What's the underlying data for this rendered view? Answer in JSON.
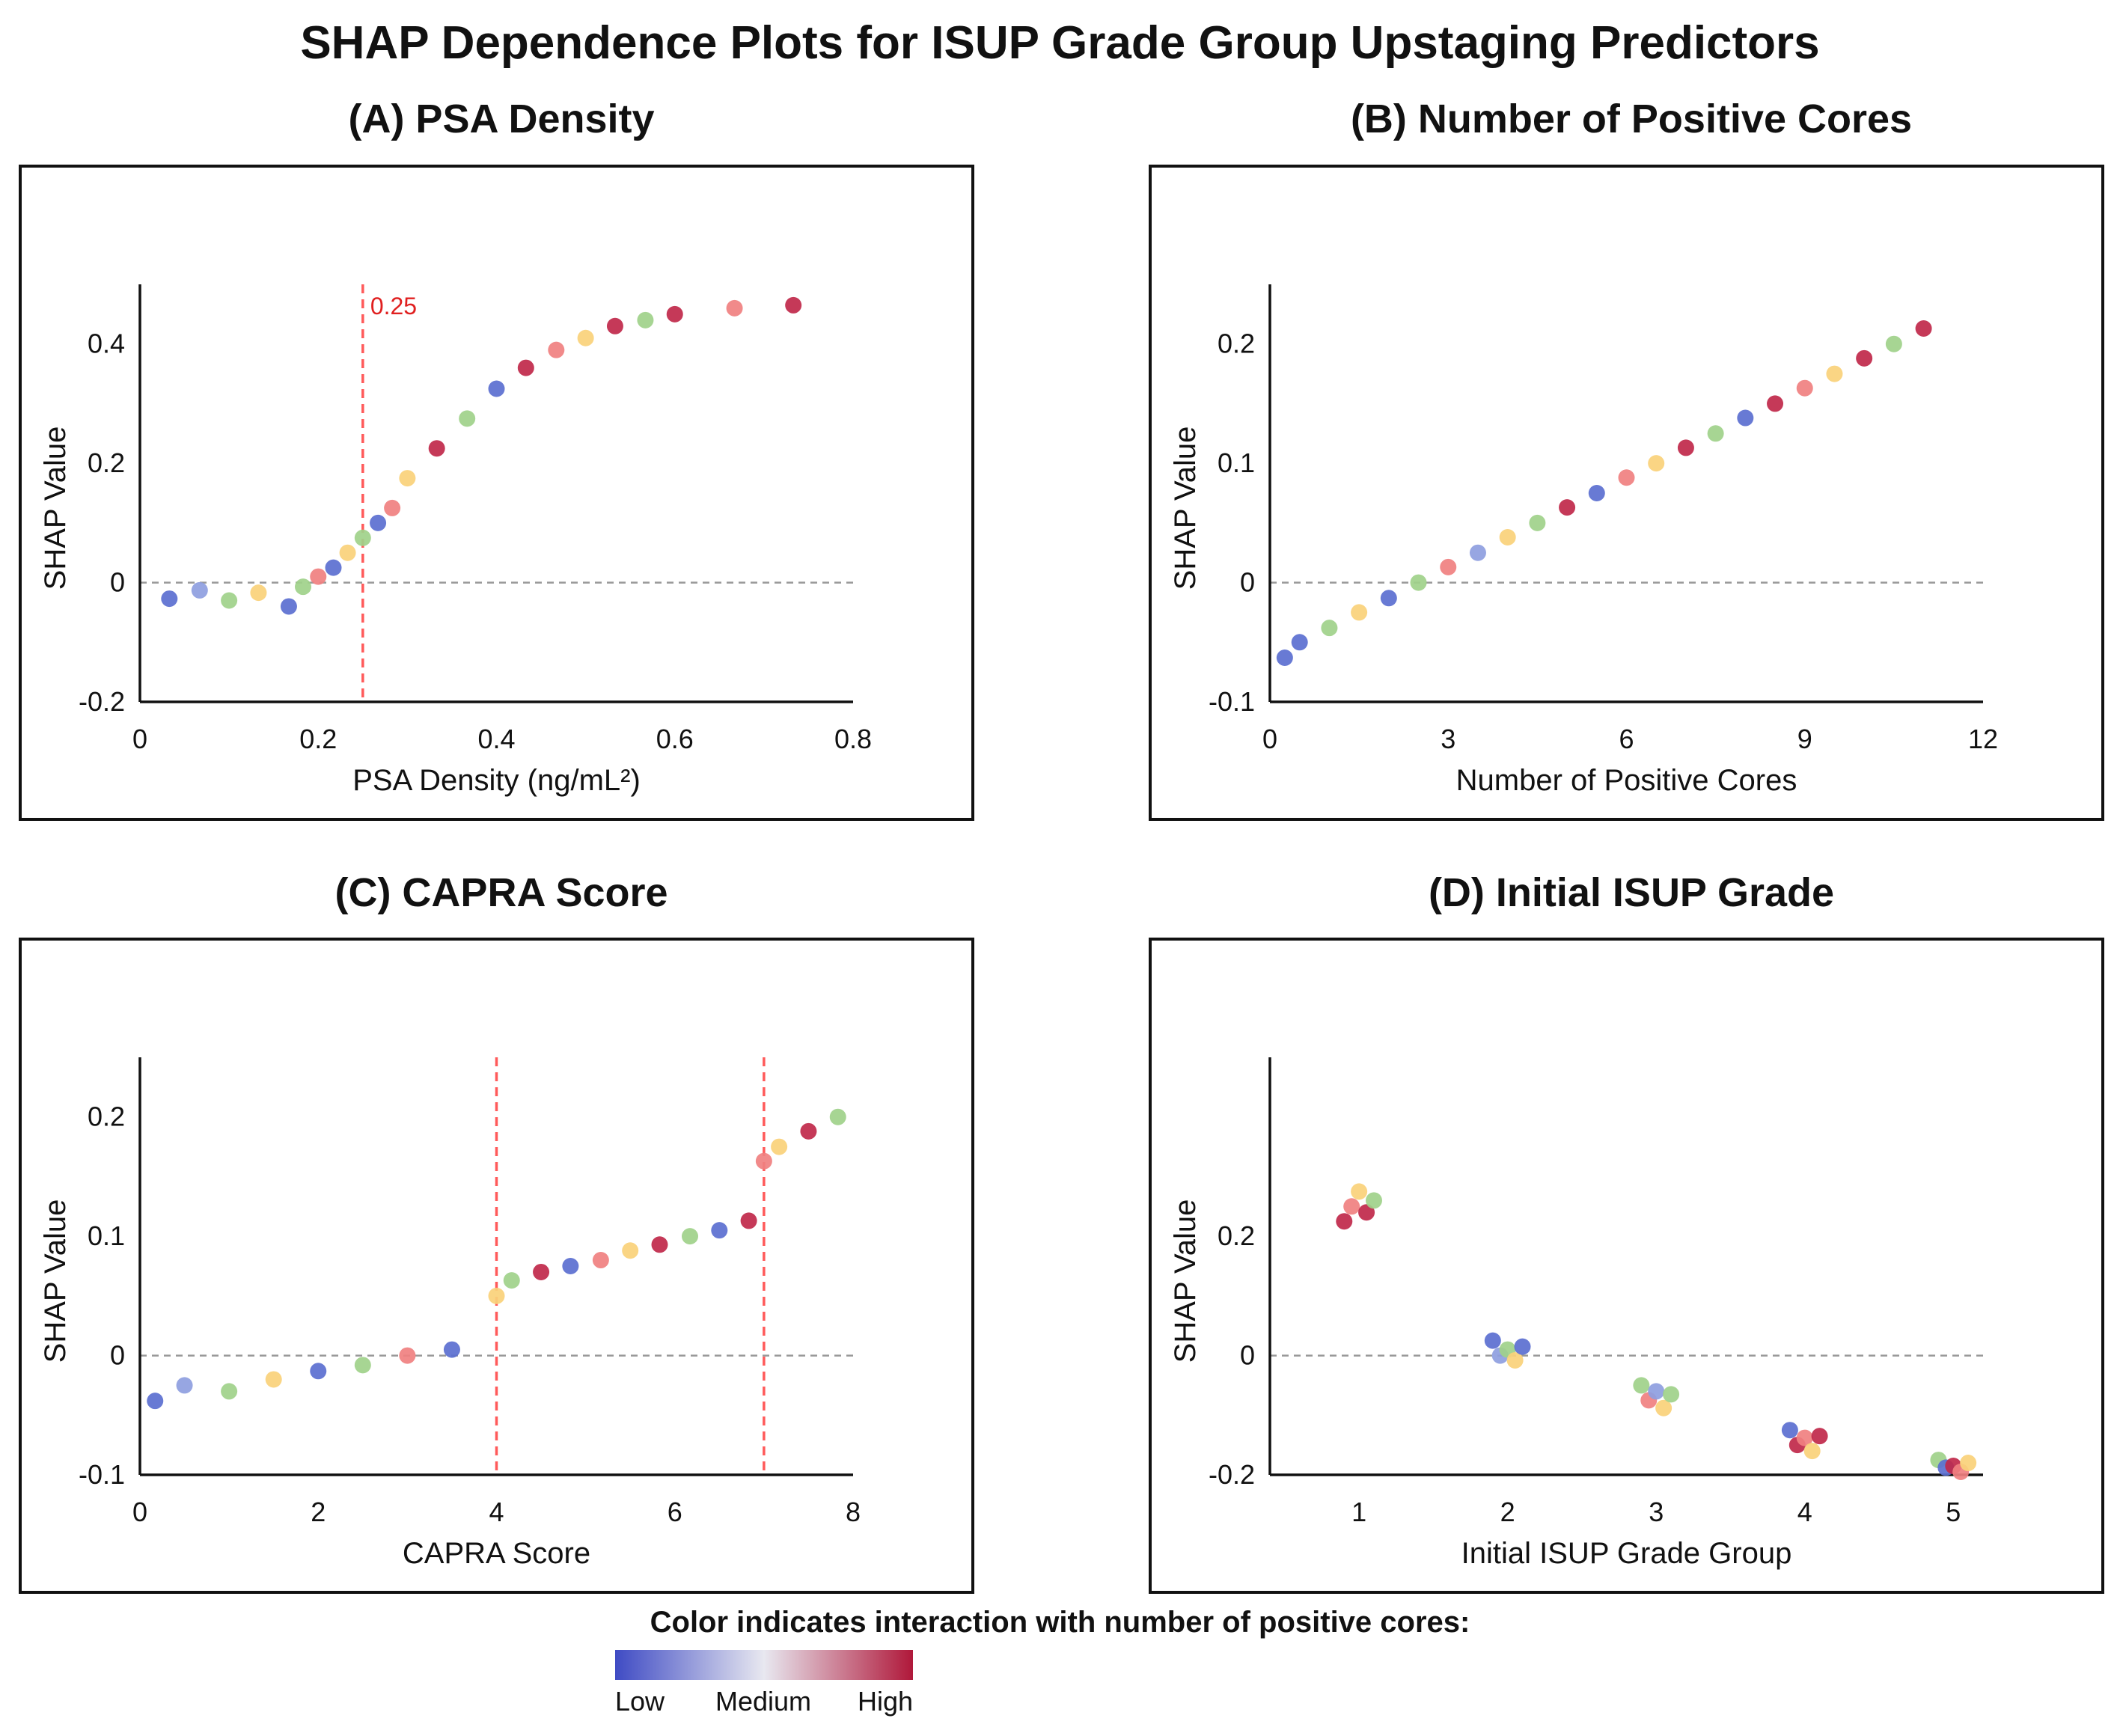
{
  "title": "SHAP Dependence Plots for ISUP Grade Group Upstaging Predictors",
  "colors": {
    "low": "#5b6fd0",
    "mid_low": "#8e9ee0",
    "medium": "#9fd18a",
    "mid_high": "#fad17a",
    "pinkish": "#f08080",
    "high": "#c0284a",
    "threshold": "#ff5a5a",
    "zero_line": "#999999"
  },
  "legend": {
    "title": "Color indicates interaction with number of positive cores:",
    "low": "Low",
    "medium": "Medium",
    "high": "High"
  },
  "chart_data": [
    {
      "type": "scatter",
      "title": "(A) PSA Density",
      "xlabel": "PSA Density (ng/mL²)",
      "ylabel": "SHAP Value",
      "xlim": [
        0,
        0.8
      ],
      "ylim": [
        -0.2,
        0.5
      ],
      "xticks": [
        0,
        0.2,
        0.4,
        0.6,
        0.8
      ],
      "xticklabels": [
        "0",
        "0.2",
        "0.4",
        "0.6",
        "0.8"
      ],
      "yticks": [
        -0.2,
        0,
        0.2,
        0.4
      ],
      "yticklabels": [
        "-0.2",
        "0",
        "0.2",
        "0.4"
      ],
      "thresholds": [
        {
          "x": 0.25,
          "label": "0.25"
        }
      ],
      "points": [
        {
          "x": 0.033,
          "y": -0.027,
          "c": "low"
        },
        {
          "x": 0.067,
          "y": -0.013,
          "c": "mid_low"
        },
        {
          "x": 0.1,
          "y": -0.03,
          "c": "medium"
        },
        {
          "x": 0.133,
          "y": -0.017,
          "c": "mid_high"
        },
        {
          "x": 0.167,
          "y": -0.04,
          "c": "low"
        },
        {
          "x": 0.183,
          "y": -0.007,
          "c": "medium"
        },
        {
          "x": 0.2,
          "y": 0.01,
          "c": "pinkish"
        },
        {
          "x": 0.217,
          "y": 0.025,
          "c": "low"
        },
        {
          "x": 0.233,
          "y": 0.05,
          "c": "mid_high"
        },
        {
          "x": 0.25,
          "y": 0.075,
          "c": "medium"
        },
        {
          "x": 0.267,
          "y": 0.1,
          "c": "low"
        },
        {
          "x": 0.283,
          "y": 0.125,
          "c": "pinkish"
        },
        {
          "x": 0.3,
          "y": 0.175,
          "c": "mid_high"
        },
        {
          "x": 0.333,
          "y": 0.225,
          "c": "high"
        },
        {
          "x": 0.367,
          "y": 0.275,
          "c": "medium"
        },
        {
          "x": 0.4,
          "y": 0.325,
          "c": "low"
        },
        {
          "x": 0.433,
          "y": 0.36,
          "c": "high"
        },
        {
          "x": 0.467,
          "y": 0.39,
          "c": "pinkish"
        },
        {
          "x": 0.5,
          "y": 0.41,
          "c": "mid_high"
        },
        {
          "x": 0.533,
          "y": 0.43,
          "c": "high"
        },
        {
          "x": 0.567,
          "y": 0.44,
          "c": "medium"
        },
        {
          "x": 0.6,
          "y": 0.45,
          "c": "high"
        },
        {
          "x": 0.667,
          "y": 0.46,
          "c": "pinkish"
        },
        {
          "x": 0.733,
          "y": 0.465,
          "c": "high"
        }
      ]
    },
    {
      "type": "scatter",
      "title": "(B) Number of Positive Cores",
      "xlabel": "Number of Positive Cores",
      "ylabel": "SHAP Value",
      "xlim": [
        0,
        12
      ],
      "ylim": [
        -0.1,
        0.25
      ],
      "xticks": [
        0,
        3,
        6,
        9,
        12
      ],
      "xticklabels": [
        "0",
        "3",
        "6",
        "9",
        "12"
      ],
      "yticks": [
        -0.1,
        0,
        0.1,
        0.2
      ],
      "yticklabels": [
        "-0.1",
        "0",
        "0.1",
        "0.2"
      ],
      "thresholds": [],
      "points": [
        {
          "x": 0.25,
          "y": -0.063,
          "c": "low"
        },
        {
          "x": 0.5,
          "y": -0.05,
          "c": "low"
        },
        {
          "x": 1.0,
          "y": -0.038,
          "c": "medium"
        },
        {
          "x": 1.5,
          "y": -0.025,
          "c": "mid_high"
        },
        {
          "x": 2.0,
          "y": -0.013,
          "c": "low"
        },
        {
          "x": 2.5,
          "y": 0.0,
          "c": "medium"
        },
        {
          "x": 3.0,
          "y": 0.013,
          "c": "pinkish"
        },
        {
          "x": 3.5,
          "y": 0.025,
          "c": "mid_low"
        },
        {
          "x": 4.0,
          "y": 0.038,
          "c": "mid_high"
        },
        {
          "x": 4.5,
          "y": 0.05,
          "c": "medium"
        },
        {
          "x": 5.0,
          "y": 0.063,
          "c": "high"
        },
        {
          "x": 5.5,
          "y": 0.075,
          "c": "low"
        },
        {
          "x": 6.0,
          "y": 0.088,
          "c": "pinkish"
        },
        {
          "x": 6.5,
          "y": 0.1,
          "c": "mid_high"
        },
        {
          "x": 7.0,
          "y": 0.113,
          "c": "high"
        },
        {
          "x": 7.5,
          "y": 0.125,
          "c": "medium"
        },
        {
          "x": 8.0,
          "y": 0.138,
          "c": "low"
        },
        {
          "x": 8.5,
          "y": 0.15,
          "c": "high"
        },
        {
          "x": 9.0,
          "y": 0.163,
          "c": "pinkish"
        },
        {
          "x": 9.5,
          "y": 0.175,
          "c": "mid_high"
        },
        {
          "x": 10.0,
          "y": 0.188,
          "c": "high"
        },
        {
          "x": 10.5,
          "y": 0.2,
          "c": "medium"
        },
        {
          "x": 11.0,
          "y": 0.213,
          "c": "high"
        }
      ]
    },
    {
      "type": "scatter",
      "title": "(C) CAPRA Score",
      "xlabel": "CAPRA Score",
      "ylabel": "SHAP Value",
      "xlim": [
        0,
        8
      ],
      "ylim": [
        -0.1,
        0.25
      ],
      "xticks": [
        0,
        2,
        4,
        6,
        8
      ],
      "xticklabels": [
        "0",
        "2",
        "4",
        "6",
        "8"
      ],
      "yticks": [
        -0.1,
        0,
        0.1,
        0.2
      ],
      "yticklabels": [
        "-0.1",
        "0",
        "0.1",
        "0.2"
      ],
      "thresholds": [
        {
          "x": 4,
          "label": ""
        },
        {
          "x": 7,
          "label": ""
        }
      ],
      "points": [
        {
          "x": 0.17,
          "y": -0.038,
          "c": "low"
        },
        {
          "x": 0.5,
          "y": -0.025,
          "c": "mid_low"
        },
        {
          "x": 1.0,
          "y": -0.03,
          "c": "medium"
        },
        {
          "x": 1.5,
          "y": -0.02,
          "c": "mid_high"
        },
        {
          "x": 2.0,
          "y": -0.013,
          "c": "low"
        },
        {
          "x": 2.5,
          "y": -0.008,
          "c": "medium"
        },
        {
          "x": 3.0,
          "y": 0.0,
          "c": "pinkish"
        },
        {
          "x": 3.5,
          "y": 0.005,
          "c": "low"
        },
        {
          "x": 4.0,
          "y": 0.05,
          "c": "mid_high"
        },
        {
          "x": 4.17,
          "y": 0.063,
          "c": "medium"
        },
        {
          "x": 4.5,
          "y": 0.07,
          "c": "high"
        },
        {
          "x": 4.83,
          "y": 0.075,
          "c": "low"
        },
        {
          "x": 5.17,
          "y": 0.08,
          "c": "pinkish"
        },
        {
          "x": 5.5,
          "y": 0.088,
          "c": "mid_high"
        },
        {
          "x": 5.83,
          "y": 0.093,
          "c": "high"
        },
        {
          "x": 6.17,
          "y": 0.1,
          "c": "medium"
        },
        {
          "x": 6.5,
          "y": 0.105,
          "c": "low"
        },
        {
          "x": 6.83,
          "y": 0.113,
          "c": "high"
        },
        {
          "x": 7.0,
          "y": 0.163,
          "c": "pinkish"
        },
        {
          "x": 7.17,
          "y": 0.175,
          "c": "mid_high"
        },
        {
          "x": 7.5,
          "y": 0.188,
          "c": "high"
        },
        {
          "x": 7.83,
          "y": 0.2,
          "c": "medium"
        }
      ]
    },
    {
      "type": "scatter",
      "title": "(D) Initial ISUP Grade",
      "xlabel": "Initial ISUP Grade Group",
      "ylabel": "SHAP Value",
      "xlim": [
        0.4,
        5.2
      ],
      "ylim": [
        -0.2,
        0.5
      ],
      "xticks": [
        1,
        2,
        3,
        4,
        5
      ],
      "xticklabels": [
        "1",
        "2",
        "3",
        "4",
        "5"
      ],
      "yticks": [
        -0.2,
        0,
        0.2
      ],
      "yticklabels": [
        "-0.2",
        "0",
        "0.2"
      ],
      "thresholds": [],
      "points": [
        {
          "x": 0.9,
          "y": 0.225,
          "c": "high"
        },
        {
          "x": 0.95,
          "y": 0.25,
          "c": "pinkish"
        },
        {
          "x": 1.0,
          "y": 0.275,
          "c": "mid_high"
        },
        {
          "x": 1.05,
          "y": 0.24,
          "c": "high"
        },
        {
          "x": 1.1,
          "y": 0.26,
          "c": "medium"
        },
        {
          "x": 1.9,
          "y": 0.025,
          "c": "low"
        },
        {
          "x": 1.95,
          "y": 0.0,
          "c": "mid_low"
        },
        {
          "x": 2.0,
          "y": 0.01,
          "c": "medium"
        },
        {
          "x": 2.05,
          "y": -0.008,
          "c": "mid_high"
        },
        {
          "x": 2.1,
          "y": 0.015,
          "c": "low"
        },
        {
          "x": 2.9,
          "y": -0.05,
          "c": "medium"
        },
        {
          "x": 2.95,
          "y": -0.075,
          "c": "pinkish"
        },
        {
          "x": 3.0,
          "y": -0.06,
          "c": "mid_low"
        },
        {
          "x": 3.05,
          "y": -0.088,
          "c": "mid_high"
        },
        {
          "x": 3.1,
          "y": -0.065,
          "c": "medium"
        },
        {
          "x": 3.9,
          "y": -0.125,
          "c": "low"
        },
        {
          "x": 3.95,
          "y": -0.15,
          "c": "high"
        },
        {
          "x": 4.0,
          "y": -0.138,
          "c": "pinkish"
        },
        {
          "x": 4.05,
          "y": -0.16,
          "c": "mid_high"
        },
        {
          "x": 4.1,
          "y": -0.135,
          "c": "high"
        },
        {
          "x": 4.9,
          "y": -0.175,
          "c": "medium"
        },
        {
          "x": 4.95,
          "y": -0.188,
          "c": "low"
        },
        {
          "x": 5.0,
          "y": -0.185,
          "c": "high"
        },
        {
          "x": 5.05,
          "y": -0.195,
          "c": "pinkish"
        },
        {
          "x": 5.1,
          "y": -0.18,
          "c": "mid_high"
        }
      ]
    }
  ]
}
